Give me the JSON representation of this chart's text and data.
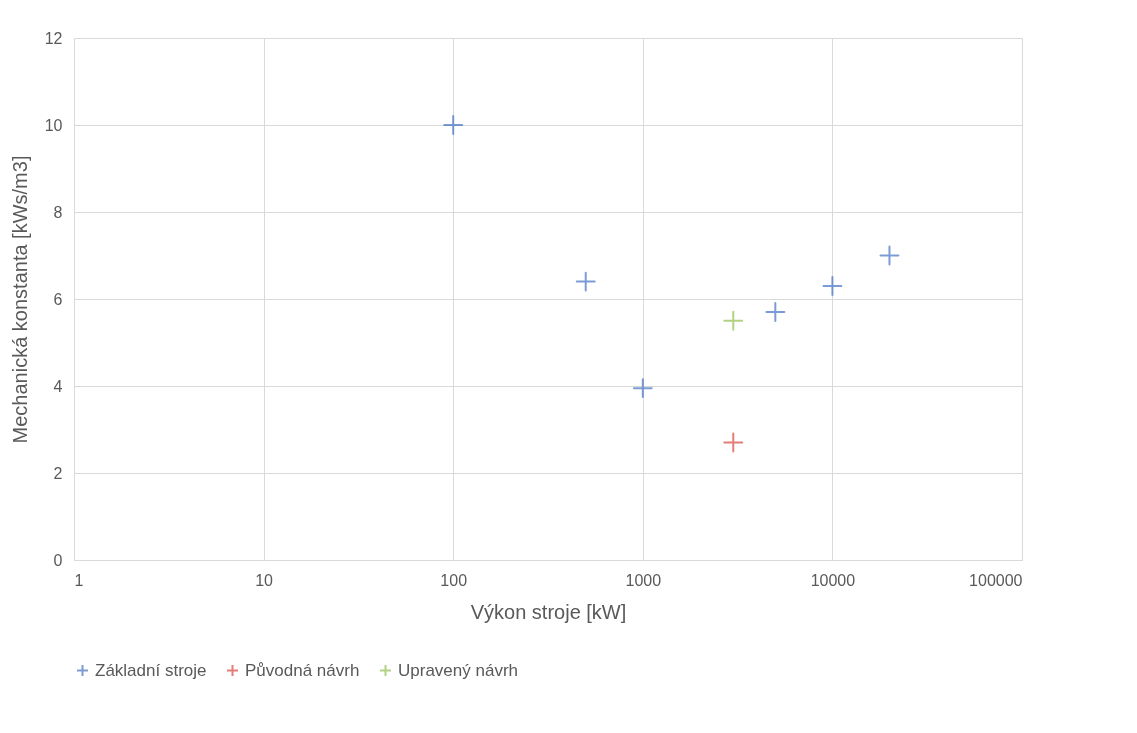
{
  "chart_data": {
    "type": "scatter",
    "xlabel": "Výkon stroje [kW]",
    "ylabel": "Mechanická konstanta [kWs/m3]",
    "series": [
      {
        "name": "Základní stroje",
        "color": "#4472c4",
        "x": [
          100,
          500,
          1000,
          5000,
          10000,
          20000
        ],
        "values": [
          10,
          6.4,
          3.95,
          5.7,
          6.3,
          7
        ]
      },
      {
        "name": "Původná návrh",
        "color": "#d9453f",
        "x": [
          3000
        ],
        "values": [
          2.7
        ]
      },
      {
        "name": "Upravený návrh",
        "color": "#92c050",
        "x": [
          3000
        ],
        "values": [
          5.5
        ]
      }
    ],
    "log": "x",
    "xlim": [
      1,
      100000
    ],
    "xticks": [
      1,
      10,
      100,
      1000,
      10000,
      100000
    ],
    "ylim": [
      0,
      12
    ],
    "yticks": [
      0,
      2,
      4,
      6,
      8,
      10,
      12
    ],
    "grid": true,
    "legend": "bottom",
    "marker": "cross"
  }
}
